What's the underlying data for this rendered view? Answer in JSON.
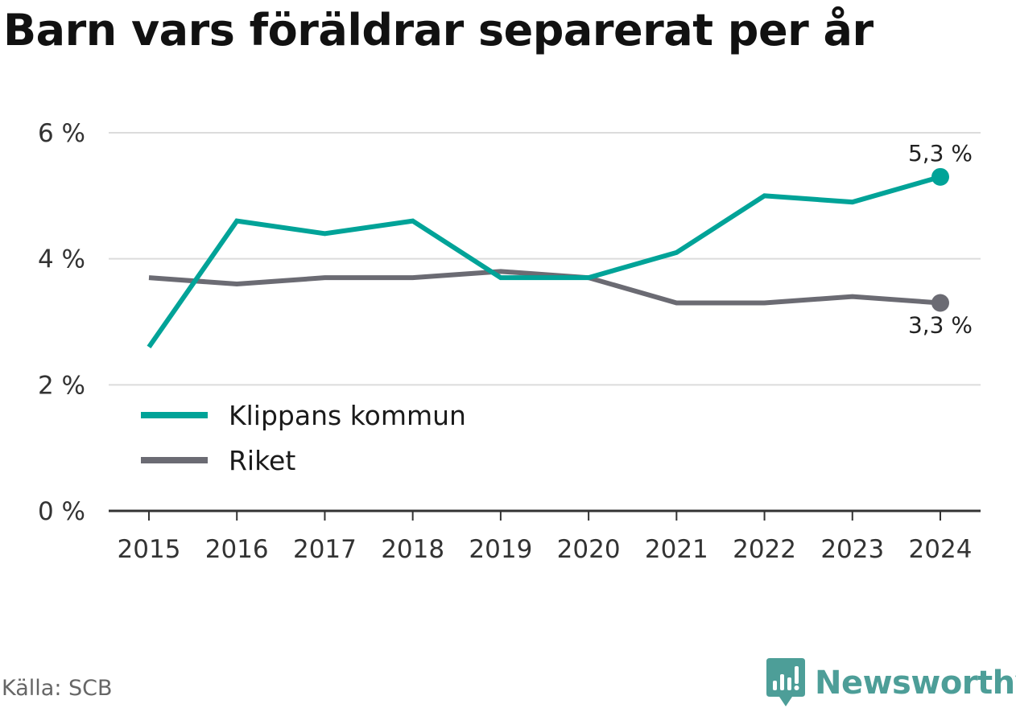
{
  "title": "Barn vars föräldrar separerat per år",
  "source": "Källa: SCB",
  "brand": {
    "name": "Newsworthy",
    "icon": "newsworthy-logo-icon",
    "color": "#4d9e98"
  },
  "chart_data": {
    "type": "line",
    "title": "Barn vars föräldrar separerat per år",
    "categories": [
      "2015",
      "2016",
      "2017",
      "2018",
      "2019",
      "2020",
      "2021",
      "2022",
      "2023",
      "2024"
    ],
    "series": [
      {
        "name": "Klippans kommun",
        "color": "#00a398",
        "values": [
          2.6,
          4.6,
          4.4,
          4.6,
          3.7,
          3.7,
          4.1,
          5.0,
          4.9,
          5.3
        ],
        "end_label": "5,3 %",
        "end_label_position": "above"
      },
      {
        "name": "Riket",
        "color": "#6b6b73",
        "values": [
          3.7,
          3.6,
          3.7,
          3.7,
          3.8,
          3.7,
          3.3,
          3.3,
          3.4,
          3.3
        ],
        "end_label": "3,3 %",
        "end_label_position": "below"
      }
    ],
    "ylim": [
      0,
      6
    ],
    "yticks": [
      0,
      2,
      4,
      6
    ],
    "ytick_labels": [
      "0 %",
      "2 %",
      "4 %",
      "6 %"
    ],
    "xlabel": "",
    "ylabel": "",
    "grid": true,
    "legend_position": "bottom-left"
  }
}
